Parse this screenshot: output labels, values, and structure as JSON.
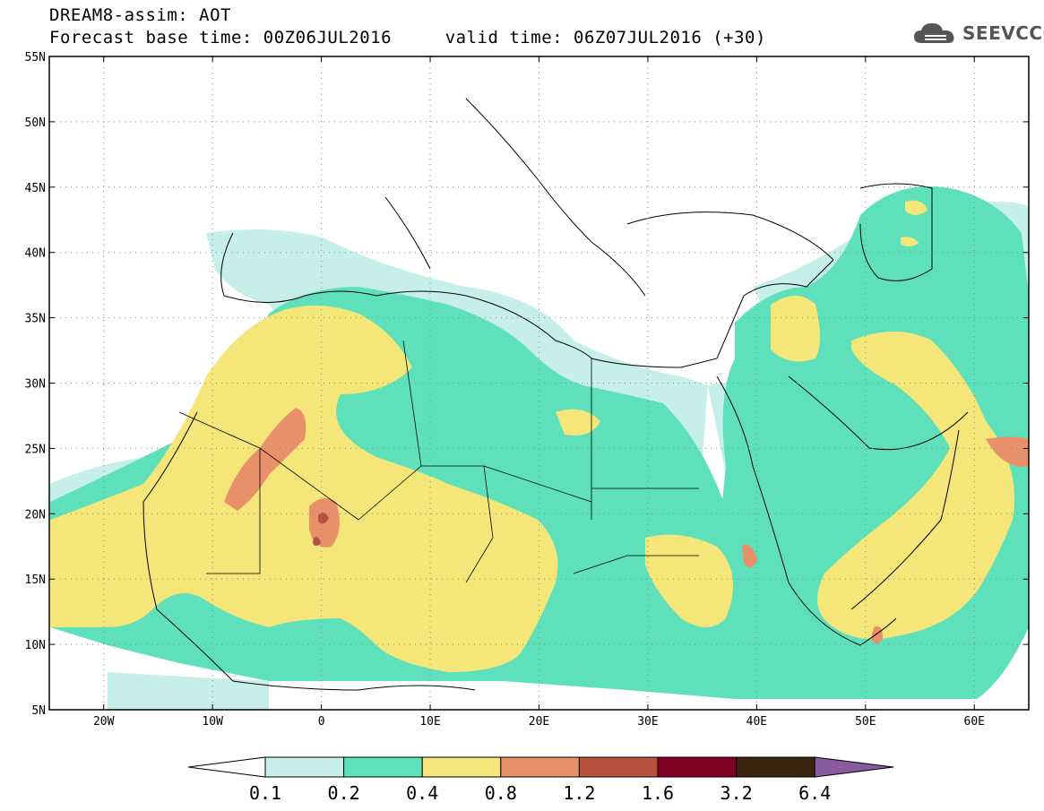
{
  "header": {
    "title_line1": "DREAM8-assim: AOT",
    "title_line2": "Forecast base time: 00Z06JUL2016     valid time: 06Z07JUL2016 (+30)"
  },
  "logo": {
    "text": "SEEVCCC",
    "icon": "cloud-icon"
  },
  "map": {
    "lon_range": [
      -25,
      65
    ],
    "lat_range": [
      5,
      55
    ],
    "lon_ticks": [
      {
        "value": -20,
        "label": "20W"
      },
      {
        "value": -10,
        "label": "10W"
      },
      {
        "value": 0,
        "label": "0"
      },
      {
        "value": 10,
        "label": "10E"
      },
      {
        "value": 20,
        "label": "20E"
      },
      {
        "value": 30,
        "label": "30E"
      },
      {
        "value": 40,
        "label": "40E"
      },
      {
        "value": 50,
        "label": "50E"
      },
      {
        "value": 60,
        "label": "60E"
      }
    ],
    "lat_ticks": [
      {
        "value": 55,
        "label": "55N"
      },
      {
        "value": 50,
        "label": "50N"
      },
      {
        "value": 45,
        "label": "45N"
      },
      {
        "value": 40,
        "label": "40N"
      },
      {
        "value": 35,
        "label": "35N"
      },
      {
        "value": 30,
        "label": "30N"
      },
      {
        "value": 25,
        "label": "25N"
      },
      {
        "value": 20,
        "label": "20N"
      },
      {
        "value": 15,
        "label": "15N"
      },
      {
        "value": 10,
        "label": "10N"
      },
      {
        "value": 5,
        "label": "5N"
      }
    ],
    "grid": "dotted"
  },
  "colorbar": {
    "labels": [
      "0.1",
      "0.2",
      "0.4",
      "0.8",
      "1.2",
      "1.6",
      "3.2",
      "6.4"
    ],
    "colors": [
      "#ffffff",
      "#c6efe9",
      "#5ee0bb",
      "#f5e67a",
      "#e8906a",
      "#b85040",
      "#820024",
      "#3a2410",
      "#8a5aa0"
    ]
  },
  "colors": {
    "c1": "#c6efe9",
    "c2": "#5ee0bb",
    "c3": "#f5e67a",
    "c4": "#e8906a",
    "c5": "#b85040"
  }
}
